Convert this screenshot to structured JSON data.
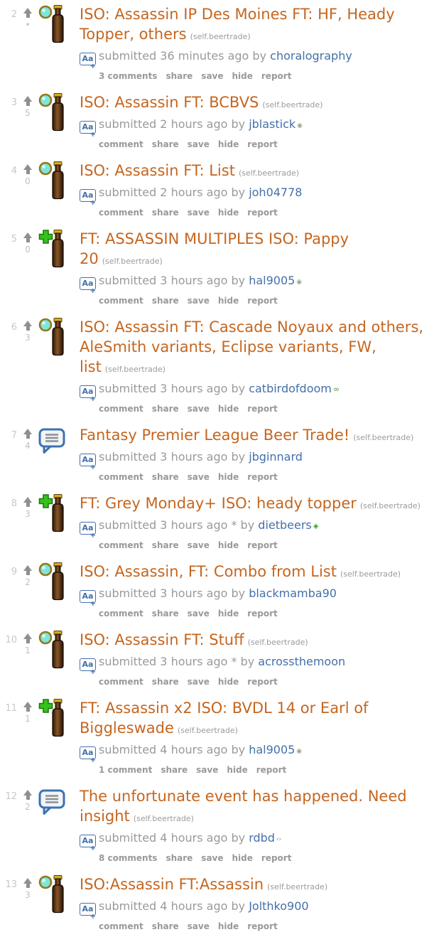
{
  "colors": {
    "title": "#c5661f",
    "link": "#4470a8",
    "muted": "#9a9a9a",
    "rank": "#c8c8c8",
    "arrow": "#8f8f8f",
    "bubble_blue": "#3c72b4",
    "badge_teal": "#7de6da",
    "badge_green": "#38c11e",
    "bottle_brown": "#5a371a",
    "cap_gold": "#d9aa1e"
  },
  "glyphs": {
    "text_post_icon": "Aa",
    "text_post_plus": "+",
    "flairs": {
      "dot": "◉",
      "green-loop": "∞",
      "green-diamond": "◈",
      "angle-dot": "‹›"
    }
  },
  "list": {
    "posts": [
      {
        "rank": "2",
        "score": "•",
        "thumb": "bottle-circle",
        "title": "ISO: Assassin IP Des Moines FT: HF, Heady Topper, others",
        "domain": "(self.beertrade)",
        "byline": "submitted 36 minutes ago by",
        "author": "choralography",
        "flair": "",
        "buttons": [
          "3 comments",
          "share",
          "save",
          "hide",
          "report"
        ]
      },
      {
        "rank": "3",
        "score": "5",
        "thumb": "bottle-circle",
        "title": "ISO: Assassin FT: BCBVS",
        "domain": "(self.beertrade)",
        "byline": "submitted 2 hours ago by",
        "author": "jblastick",
        "flair": "dot",
        "buttons": [
          "comment",
          "share",
          "save",
          "hide",
          "report"
        ]
      },
      {
        "rank": "4",
        "score": "0",
        "thumb": "bottle-circle",
        "title": "ISO: Assassin FT: List",
        "domain": "(self.beertrade)",
        "byline": "submitted 2 hours ago by",
        "author": "joh04778",
        "flair": "",
        "buttons": [
          "comment",
          "share",
          "save",
          "hide",
          "report"
        ]
      },
      {
        "rank": "5",
        "score": "0",
        "thumb": "bottle-plus",
        "title": "FT: ASSASSIN MULTIPLES ISO: Pappy 20",
        "domain": "(self.beertrade)",
        "byline": "submitted 3 hours ago by",
        "author": "hal9005",
        "flair": "dot",
        "buttons": [
          "comment",
          "share",
          "save",
          "hide",
          "report"
        ]
      },
      {
        "rank": "6",
        "score": "3",
        "thumb": "bottle-circle",
        "title": "ISO: Assassin FT: Cascade Noyaux and others, AleSmith variants, Eclipse variants, FW, list",
        "domain": "(self.beertrade)",
        "byline": "submitted 3 hours ago by",
        "author": "catbirdofdoom",
        "flair": "green-loop",
        "buttons": [
          "comment",
          "share",
          "save",
          "hide",
          "report"
        ]
      },
      {
        "rank": "7",
        "score": "4",
        "thumb": "bubble",
        "title": "Fantasy Premier League Beer Trade!",
        "domain": "(self.beertrade)",
        "byline": "submitted 3 hours ago by",
        "author": "jbginnard",
        "flair": "",
        "buttons": [
          "comment",
          "share",
          "save",
          "hide",
          "report"
        ]
      },
      {
        "rank": "8",
        "score": "3",
        "thumb": "bottle-plus",
        "title": "FT: Grey Monday+ ISO: heady topper",
        "domain": "(self.beertrade)",
        "byline": "submitted 3 hours ago * by",
        "author": "dietbeers",
        "flair": "green-diamond",
        "buttons": [
          "comment",
          "share",
          "save",
          "hide",
          "report"
        ]
      },
      {
        "rank": "9",
        "score": "2",
        "thumb": "bottle-circle",
        "title": "ISO: Assassin, FT: Combo from List",
        "domain": "(self.beertrade)",
        "byline": "submitted 3 hours ago by",
        "author": "blackmamba90",
        "flair": "",
        "buttons": [
          "comment",
          "share",
          "save",
          "hide",
          "report"
        ]
      },
      {
        "rank": "10",
        "score": "1",
        "thumb": "bottle-circle",
        "title": "ISO: Assassin FT: Stuff",
        "domain": "(self.beertrade)",
        "byline": "submitted 3 hours ago * by",
        "author": "acrossthemoon",
        "flair": "",
        "buttons": [
          "comment",
          "share",
          "save",
          "hide",
          "report"
        ]
      },
      {
        "rank": "11",
        "score": "1",
        "thumb": "bottle-plus",
        "title": "FT: Assassin x2 ISO: BVDL 14 or Earl of Biggleswade",
        "domain": "(self.beertrade)",
        "byline": "submitted 4 hours ago by",
        "author": "hal9005",
        "flair": "dot",
        "buttons": [
          "1 comment",
          "share",
          "save",
          "hide",
          "report"
        ]
      },
      {
        "rank": "12",
        "score": "2",
        "thumb": "bubble",
        "title": "The unfortunate event has happened. Need insight",
        "domain": "(self.beertrade)",
        "byline": "submitted 4 hours ago by",
        "author": "rdbd",
        "flair": "angle-dot",
        "buttons": [
          "8 comments",
          "share",
          "save",
          "hide",
          "report"
        ]
      },
      {
        "rank": "13",
        "score": "3",
        "thumb": "bottle-circle",
        "title": "ISO:Assassin FT:Assassin",
        "domain": "(self.beertrade)",
        "byline": "submitted 4 hours ago by",
        "author": "Jolthko900",
        "flair": "",
        "buttons": [
          "comment",
          "share",
          "save",
          "hide",
          "report"
        ]
      }
    ]
  }
}
